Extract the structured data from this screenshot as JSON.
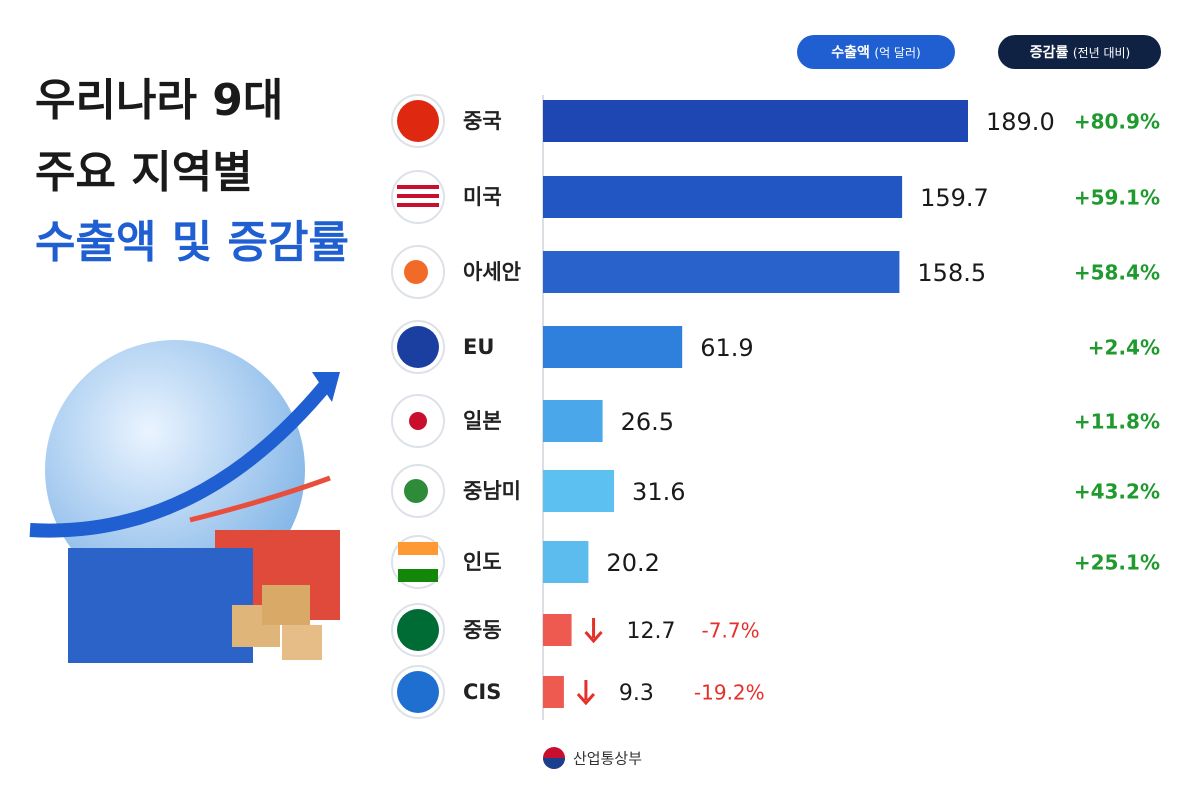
{
  "chart_data": {
    "type": "hbar",
    "title_lines": [
      "우리나라 9대",
      "주요 지역별",
      "수출액 및 증감률"
    ],
    "value_header": "수출액",
    "value_header_unit": "(억 달러)",
    "change_header": "증감률",
    "change_header_unit": "(전년 대비)",
    "categories": [
      "중국",
      "미국",
      "아세안",
      "EU",
      "일본",
      "중남미",
      "인도",
      "중동",
      "CIS"
    ],
    "values": [
      189.0,
      159.7,
      158.5,
      61.9,
      26.5,
      31.6,
      20.2,
      12.7,
      9.3
    ],
    "value_labels": [
      "189.0",
      "159.7",
      "158.5",
      "61.9",
      "26.5",
      "31.6",
      "20.2",
      "12.7",
      "9.3"
    ],
    "colors": [
      "#1f47b3",
      "#2256c2",
      "#2a62cc",
      "#2f7fdc",
      "#4aa7ea",
      "#5cc0f0",
      "#5cbcee",
      "#ef5a50",
      "#ef5a50"
    ],
    "changes": [
      80.9,
      59.1,
      58.4,
      2.4,
      11.8,
      43.2,
      25.1,
      -7.7,
      -19.2
    ],
    "change_labels": [
      "+80.9%",
      "+59.1%",
      "+58.4%",
      "+2.4%",
      "+11.8%",
      "+43.2%",
      "+25.1%",
      "-7.7%",
      "-19.2%"
    ],
    "positive_color": "#1f9a2e",
    "negative_color": "#e5302a",
    "source": "산업통상부"
  }
}
